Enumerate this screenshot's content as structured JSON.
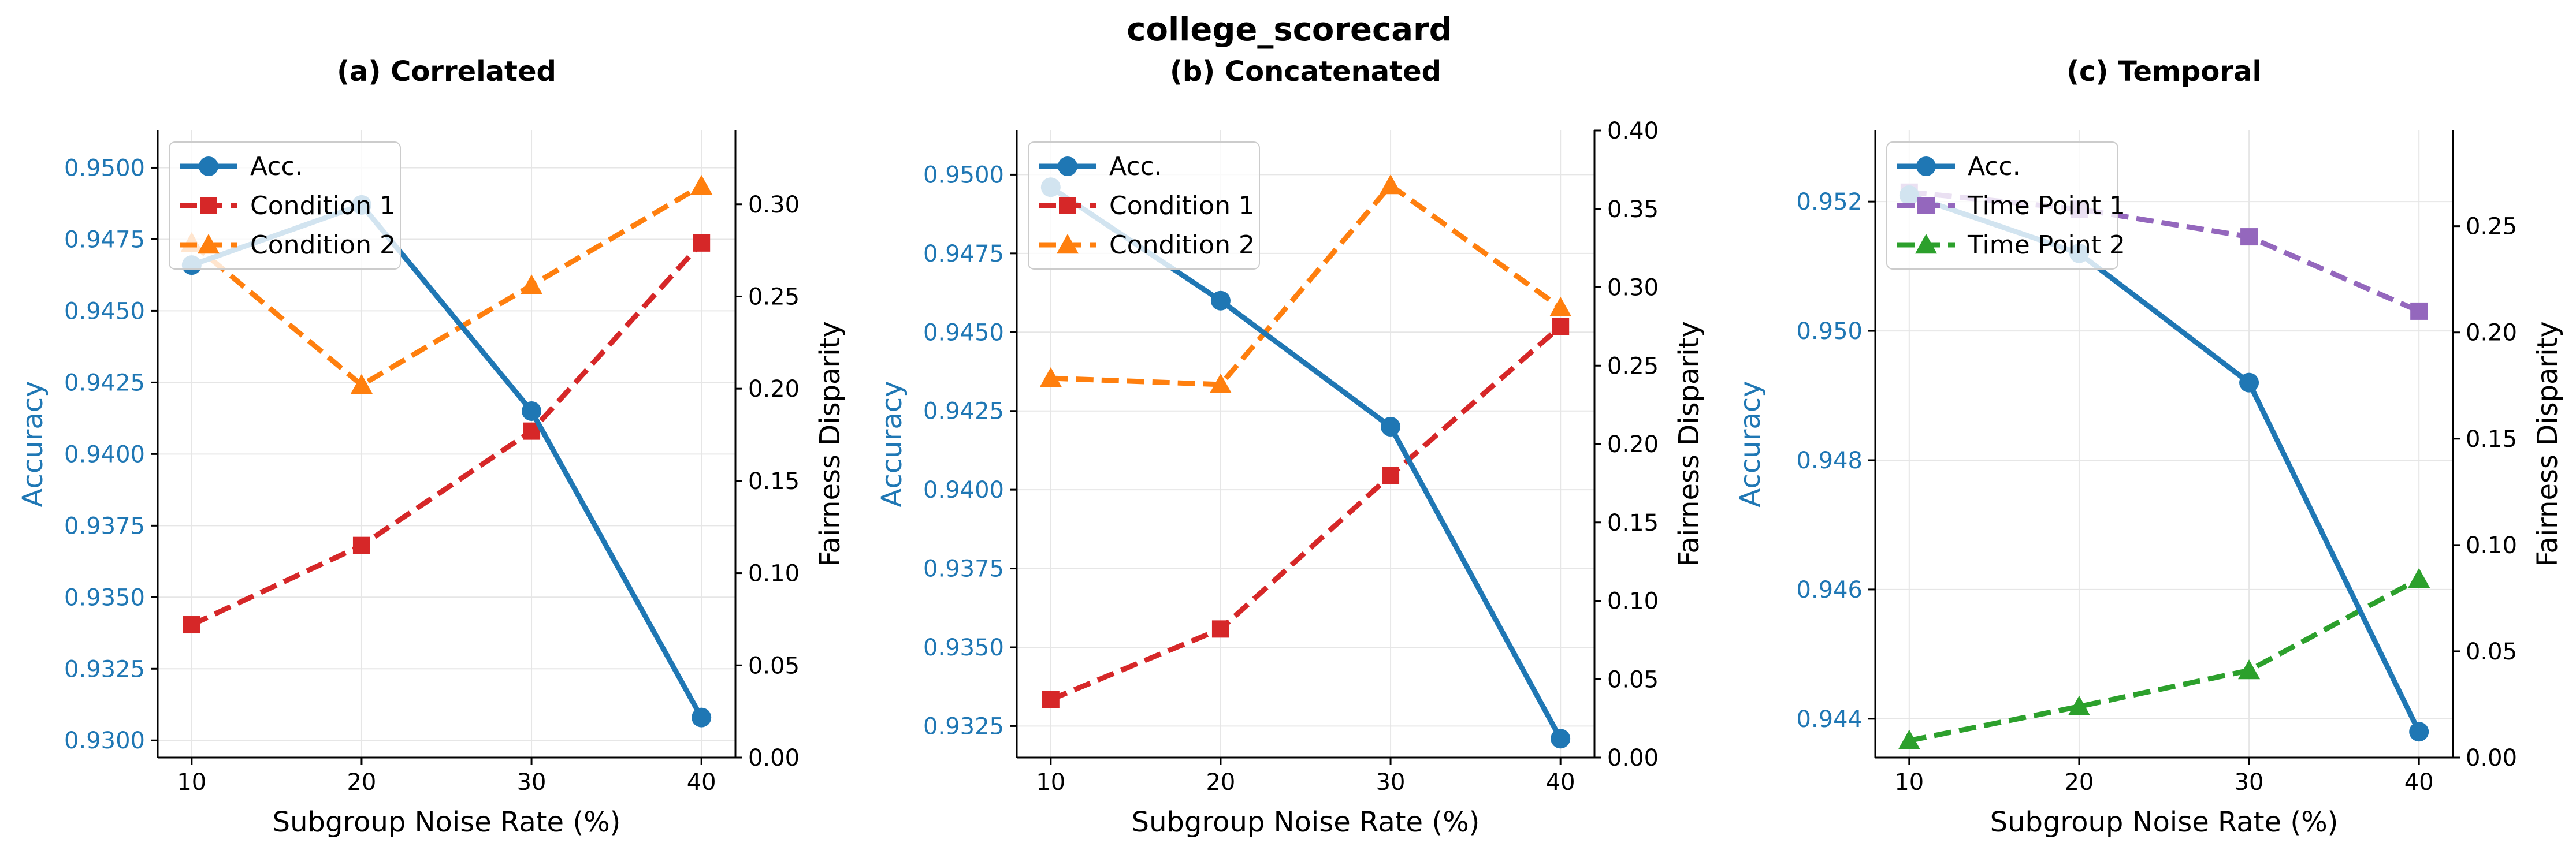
{
  "suptitle": "college_scorecard",
  "colors": {
    "accuracy": "#1f77b4",
    "condition1": "#d62728",
    "condition2": "#ff7f0e",
    "timepoint1": "#9467bd",
    "timepoint2": "#2ca02c"
  },
  "chart_data": [
    {
      "type": "line",
      "title": "(a) Correlated",
      "xlabel": "Subgroup Noise Rate (%)",
      "ylabel": "Accuracy",
      "y2label": "Fairness Disparity",
      "x": [
        10,
        20,
        30,
        40
      ],
      "xlim": [
        8,
        42
      ],
      "ylim": [
        0.9294,
        0.9513
      ],
      "yticks": [
        "0.9300",
        "0.9325",
        "0.9350",
        "0.9375",
        "0.9400",
        "0.9425",
        "0.9450",
        "0.9475",
        "0.9500"
      ],
      "y2lim": [
        0.0,
        0.34
      ],
      "y2ticks": [
        "0.00",
        "0.05",
        "0.10",
        "0.15",
        "0.20",
        "0.25",
        "0.30"
      ],
      "legend_position": "upper-left",
      "grid": true,
      "series": [
        {
          "name": "Acc.",
          "axis": "left",
          "color_key": "accuracy",
          "marker": "circle",
          "dashed": false,
          "values": [
            0.9466,
            0.9487,
            0.9415,
            0.9308
          ]
        },
        {
          "name": "Condition 1",
          "axis": "right",
          "color_key": "condition1",
          "marker": "square",
          "dashed": true,
          "values": [
            0.072,
            0.115,
            0.177,
            0.279
          ]
        },
        {
          "name": "Condition 2",
          "axis": "right",
          "color_key": "condition2",
          "marker": "triangle",
          "dashed": true,
          "values": [
            0.279,
            0.202,
            0.256,
            0.31
          ]
        }
      ]
    },
    {
      "type": "line",
      "title": "(b) Concatenated",
      "xlabel": "Subgroup Noise Rate (%)",
      "ylabel": "Accuracy",
      "y2label": "Fairness Disparity",
      "x": [
        10,
        20,
        30,
        40
      ],
      "xlim": [
        8,
        42
      ],
      "ylim": [
        0.9315,
        0.9514
      ],
      "yticks": [
        "0.9325",
        "0.9350",
        "0.9375",
        "0.9400",
        "0.9425",
        "0.9450",
        "0.9475",
        "0.9500"
      ],
      "y2lim": [
        0.0,
        0.4
      ],
      "y2ticks": [
        "0.00",
        "0.05",
        "0.10",
        "0.15",
        "0.20",
        "0.25",
        "0.30",
        "0.35",
        "0.40"
      ],
      "legend_position": "upper-left",
      "grid": true,
      "series": [
        {
          "name": "Acc.",
          "axis": "left",
          "color_key": "accuracy",
          "marker": "circle",
          "dashed": false,
          "values": [
            0.9496,
            0.946,
            0.942,
            0.9321
          ]
        },
        {
          "name": "Condition 1",
          "axis": "right",
          "color_key": "condition1",
          "marker": "square",
          "dashed": true,
          "values": [
            0.037,
            0.082,
            0.18,
            0.275
          ]
        },
        {
          "name": "Condition 2",
          "axis": "right",
          "color_key": "condition2",
          "marker": "triangle",
          "dashed": true,
          "values": [
            0.242,
            0.238,
            0.365,
            0.287
          ]
        }
      ]
    },
    {
      "type": "line",
      "title": "(c) Temporal",
      "xlabel": "Subgroup Noise Rate (%)",
      "ylabel": "Accuracy",
      "y2label": "Fairness Disparity",
      "x": [
        10,
        20,
        30,
        40
      ],
      "xlim": [
        8,
        42
      ],
      "ylim": [
        0.9434,
        0.9531
      ],
      "yticks": [
        "0.944",
        "0.946",
        "0.948",
        "0.950",
        "0.952"
      ],
      "y2lim": [
        0.0,
        0.295
      ],
      "y2ticks": [
        "0.00",
        "0.05",
        "0.10",
        "0.15",
        "0.20",
        "0.25"
      ],
      "legend_position": "upper-left",
      "grid": true,
      "series": [
        {
          "name": "Acc.",
          "axis": "left",
          "color_key": "accuracy",
          "marker": "circle",
          "dashed": false,
          "values": [
            0.9521,
            0.9512,
            0.9492,
            0.9438
          ]
        },
        {
          "name": "Time Point 1",
          "axis": "right",
          "color_key": "timepoint1",
          "marker": "square",
          "dashed": true,
          "values": [
            0.266,
            0.258,
            0.245,
            0.21
          ]
        },
        {
          "name": "Time Point 2",
          "axis": "right",
          "color_key": "timepoint2",
          "marker": "triangle",
          "dashed": true,
          "values": [
            0.008,
            0.024,
            0.041,
            0.084
          ]
        }
      ]
    }
  ]
}
